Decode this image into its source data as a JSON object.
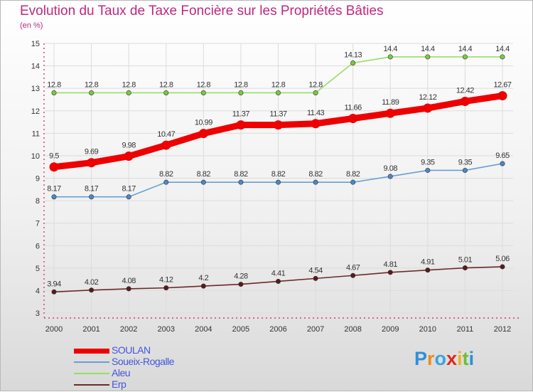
{
  "title": "Evolution du Taux de Taxe Foncière sur les Propriétés Bâties",
  "subtitle": "(en %)",
  "logo": "Proxiti",
  "colors": {
    "title": "#c0277d",
    "axis": "#cc1f4a",
    "grid": "#dcdcdc",
    "legend_text": "#4455dd"
  },
  "chart_data": {
    "type": "line",
    "title": "Evolution du Taux de Taxe Foncière sur les Propriétés Bâties",
    "ylabel": "(en %)",
    "xlabel": "",
    "x": [
      "2000",
      "2001",
      "2002",
      "2003",
      "2004",
      "2005",
      "2006",
      "2007",
      "2008",
      "2009",
      "2010",
      "2011",
      "2012"
    ],
    "ylim": [
      3,
      15
    ],
    "yticks": [
      "3",
      "4",
      "5",
      "6",
      "7",
      "8",
      "9",
      "10",
      "11",
      "12",
      "13",
      "14",
      "15"
    ],
    "grid": true,
    "legend_position": "bottom-left",
    "series": [
      {
        "name": "SOULAN",
        "color": "#ee0000",
        "emphasis": true,
        "values": [
          9.5,
          9.69,
          9.98,
          10.47,
          10.99,
          11.37,
          11.37,
          11.43,
          11.66,
          11.89,
          12.12,
          12.42,
          12.67
        ],
        "labels": [
          "9.5",
          "9.69",
          "9.98",
          "10.47",
          "10.99",
          "11.37",
          "11.37",
          "11.43",
          "11.66",
          "11.89",
          "12.12",
          "12.42",
          "12.67"
        ]
      },
      {
        "name": "Soueix-Rogalle",
        "color": "#6a9ed3",
        "marker": "#4a88c8",
        "values": [
          8.17,
          8.17,
          8.17,
          8.82,
          8.82,
          8.82,
          8.82,
          8.82,
          8.82,
          9.08,
          9.35,
          9.35,
          9.65
        ],
        "labels": [
          "8.17",
          "8.17",
          "8.17",
          "8.82",
          "8.82",
          "8.82",
          "8.82",
          "8.82",
          "8.82",
          "9.08",
          "9.35",
          "9.35",
          "9.65"
        ]
      },
      {
        "name": "Aleu",
        "color": "#99dd66",
        "marker": "#7ac943",
        "values": [
          12.8,
          12.8,
          12.8,
          12.8,
          12.8,
          12.8,
          12.8,
          12.8,
          14.13,
          14.4,
          14.4,
          14.4,
          14.4
        ],
        "labels": [
          "12.8",
          "12.8",
          "12.8",
          "12.8",
          "12.8",
          "12.8",
          "12.8",
          "12.8",
          "14.13",
          "14.4",
          "14.4",
          "14.4",
          "14.4"
        ]
      },
      {
        "name": "Erp",
        "color": "#6b2a2a",
        "marker": "#5a1a1a",
        "values": [
          3.94,
          4.02,
          4.08,
          4.12,
          4.2,
          4.28,
          4.41,
          4.54,
          4.67,
          4.81,
          4.91,
          5.01,
          5.06
        ],
        "labels": [
          "3.94",
          "4.02",
          "4.08",
          "4.12",
          "4.2",
          "4.28",
          "4.41",
          "4.54",
          "4.67",
          "4.81",
          "4.91",
          "5.01",
          "5.06"
        ]
      }
    ]
  }
}
